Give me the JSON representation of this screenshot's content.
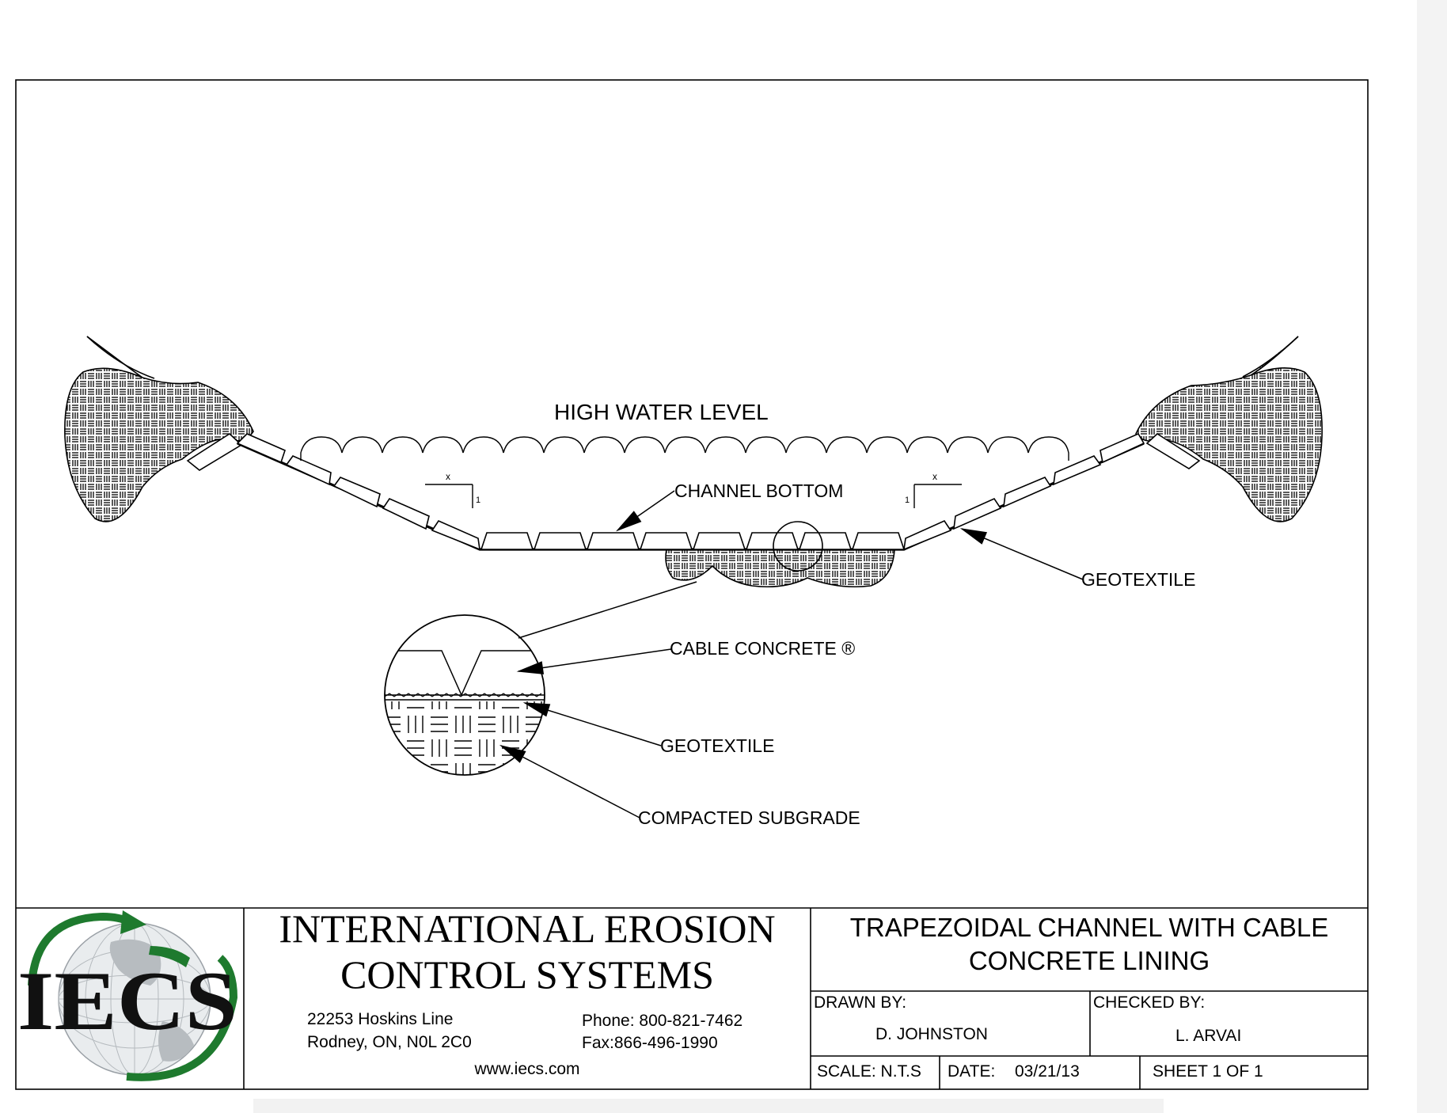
{
  "drawing": {
    "high_water_level": "HIGH WATER LEVEL",
    "channel_bottom": "CHANNEL BOTTOM",
    "geotextile_main": "GEOTEXTILE",
    "cable_concrete": "CABLE CONCRETE ®",
    "geotextile_detail": "GEOTEXTILE",
    "compacted_subgrade": "COMPACTED SUBGRADE",
    "slope_left_run": "x",
    "slope_left_rise": "1",
    "slope_right_run": "x",
    "slope_right_rise": "1"
  },
  "title_block": {
    "logo_text": "IECS",
    "company_line1": "INTERNATIONAL EROSION",
    "company_line2": "CONTROL SYSTEMS",
    "address_line1": "22253 Hoskins Line",
    "address_line2": "Rodney, ON, N0L 2C0",
    "phone": "Phone: 800-821-7462",
    "fax": "Fax:866-496-1990",
    "website": "www.iecs.com",
    "title_line1": "TRAPEZOIDAL CHANNEL WITH CABLE",
    "title_line2": "CONCRETE LINING",
    "drawn_by_label": "DRAWN BY:",
    "drawn_by": "D. JOHNSTON",
    "checked_by_label": "CHECKED BY:",
    "checked_by": "L. ARVAI",
    "scale": "SCALE: N.T.S",
    "date_label": "DATE:",
    "date": "03/21/13",
    "sheet": "SHEET 1 OF 1"
  },
  "colors": {
    "line": "#000000",
    "logo_green": "#1e7a2e",
    "globe": "#9aa0a6"
  }
}
